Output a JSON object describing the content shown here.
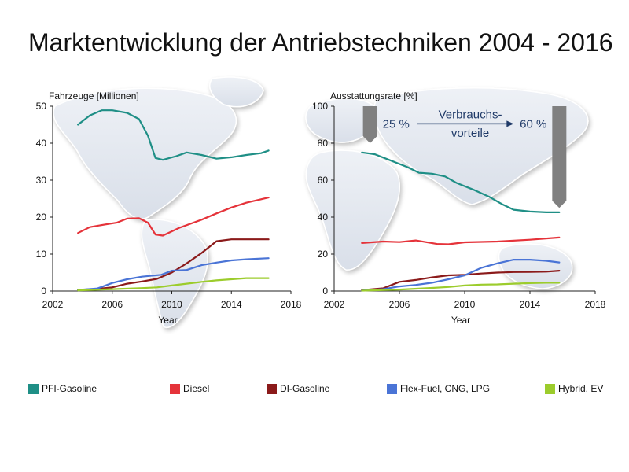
{
  "title": "Marktentwicklung der Antriebstechniken 2004 - 2016",
  "colors": {
    "pfi": "#1f8f86",
    "diesel": "#e5333a",
    "di": "#8b1a1a",
    "flex": "#4a74d6",
    "hybrid": "#9ccc2c",
    "axis": "#222222",
    "arrow_text": "#1f3a68",
    "bar": "#808080"
  },
  "legend": [
    {
      "key": "pfi",
      "label": "PFI-Gasoline",
      "color": "#1f8f86"
    },
    {
      "key": "diesel",
      "label": "Diesel",
      "color": "#e5333a"
    },
    {
      "key": "di",
      "label": "DI-Gasoline",
      "color": "#8b1a1a"
    },
    {
      "key": "flex",
      "label": "Flex-Fuel, CNG, LPG",
      "color": "#4a74d6"
    },
    {
      "key": "hybrid",
      "label": "Hybrid, EV",
      "color": "#9ccc2c"
    }
  ],
  "chart_data": [
    {
      "type": "line",
      "ylabel": "Fahrzeuge [Millionen]",
      "xlabel": "Year",
      "xlim": [
        2002,
        2018
      ],
      "ylim": [
        0,
        50
      ],
      "xticks": [
        2002,
        2006,
        2010,
        2014,
        2018
      ],
      "yticks": [
        0,
        10,
        20,
        30,
        40,
        50
      ],
      "grid": false,
      "series": [
        {
          "key": "pfi",
          "name": "PFI-Gasoline",
          "color": "#1f8f86",
          "points": [
            [
              2003.7,
              45
            ],
            [
              2004.5,
              47.5
            ],
            [
              2005.3,
              48.9
            ],
            [
              2006,
              48.9
            ],
            [
              2007,
              48.2
            ],
            [
              2007.8,
              46.5
            ],
            [
              2008.4,
              42
            ],
            [
              2008.9,
              36
            ],
            [
              2009.4,
              35.5
            ],
            [
              2010.3,
              36.5
            ],
            [
              2011,
              37.5
            ],
            [
              2012,
              36.8
            ],
            [
              2013,
              35.8
            ],
            [
              2014,
              36.2
            ],
            [
              2015,
              36.8
            ],
            [
              2016,
              37.3
            ],
            [
              2016.5,
              38
            ]
          ]
        },
        {
          "key": "diesel",
          "name": "Diesel",
          "color": "#e5333a",
          "points": [
            [
              2003.7,
              15.7
            ],
            [
              2004.5,
              17.3
            ],
            [
              2005.5,
              18
            ],
            [
              2006.3,
              18.5
            ],
            [
              2007,
              19.6
            ],
            [
              2007.8,
              19.7
            ],
            [
              2008.4,
              18.5
            ],
            [
              2008.9,
              15.3
            ],
            [
              2009.4,
              15
            ],
            [
              2010.5,
              17.1
            ],
            [
              2012,
              19.3
            ],
            [
              2013,
              21
            ],
            [
              2014,
              22.6
            ],
            [
              2015,
              23.9
            ],
            [
              2016.5,
              25.3
            ]
          ]
        },
        {
          "key": "di",
          "name": "DI-Gasoline",
          "color": "#8b1a1a",
          "points": [
            [
              2003.7,
              0.3
            ],
            [
              2005,
              0.6
            ],
            [
              2006,
              1
            ],
            [
              2007,
              2
            ],
            [
              2008,
              2.6
            ],
            [
              2009,
              3.3
            ],
            [
              2010,
              5
            ],
            [
              2011,
              7.5
            ],
            [
              2012,
              10.3
            ],
            [
              2013,
              13.5
            ],
            [
              2014,
              14
            ],
            [
              2015,
              14
            ],
            [
              2016.5,
              14
            ]
          ]
        },
        {
          "key": "flex",
          "name": "Flex-Fuel, CNG, LPG",
          "color": "#4a74d6",
          "points": [
            [
              2003.7,
              0.3
            ],
            [
              2005,
              0.7
            ],
            [
              2006,
              2.2
            ],
            [
              2007,
              3.2
            ],
            [
              2008,
              3.9
            ],
            [
              2009.3,
              4.4
            ],
            [
              2010,
              5.5
            ],
            [
              2011,
              5.7
            ],
            [
              2012,
              7
            ],
            [
              2013,
              7.7
            ],
            [
              2014,
              8.3
            ],
            [
              2015,
              8.6
            ],
            [
              2016.5,
              8.9
            ]
          ]
        },
        {
          "key": "hybrid",
          "name": "Hybrid, EV",
          "color": "#9ccc2c",
          "points": [
            [
              2003.7,
              0.2
            ],
            [
              2006,
              0.5
            ],
            [
              2008,
              0.8
            ],
            [
              2009,
              1
            ],
            [
              2010,
              1.5
            ],
            [
              2011,
              2
            ],
            [
              2012,
              2.5
            ],
            [
              2013,
              2.9
            ],
            [
              2014,
              3.2
            ],
            [
              2015,
              3.5
            ],
            [
              2016.5,
              3.5
            ]
          ]
        }
      ]
    },
    {
      "type": "line",
      "ylabel": "Ausstattungsrate [%]",
      "xlabel": "Year",
      "xlim": [
        2002,
        2018
      ],
      "ylim": [
        0,
        100
      ],
      "xticks": [
        2002,
        2006,
        2010,
        2014,
        2018
      ],
      "yticks": [
        0,
        20,
        40,
        60,
        80,
        100
      ],
      "grid": false,
      "series": [
        {
          "key": "pfi",
          "name": "PFI-Gasoline",
          "color": "#1f8f86",
          "points": [
            [
              2003.7,
              75
            ],
            [
              2004.5,
              74
            ],
            [
              2005.5,
              70.5
            ],
            [
              2006.5,
              67
            ],
            [
              2007.2,
              64
            ],
            [
              2008,
              63.5
            ],
            [
              2008.8,
              62
            ],
            [
              2009.5,
              58.5
            ],
            [
              2010.5,
              55
            ],
            [
              2011.5,
              51
            ],
            [
              2012.3,
              47
            ],
            [
              2013,
              44
            ],
            [
              2014,
              43
            ],
            [
              2015,
              42.6
            ],
            [
              2015.8,
              42.6
            ]
          ]
        },
        {
          "key": "diesel",
          "name": "Diesel",
          "color": "#e5333a",
          "points": [
            [
              2003.7,
              26
            ],
            [
              2005,
              26.8
            ],
            [
              2006,
              26.5
            ],
            [
              2007,
              27.4
            ],
            [
              2008.3,
              25.5
            ],
            [
              2009,
              25.3
            ],
            [
              2010,
              26.4
            ],
            [
              2012,
              26.8
            ],
            [
              2014,
              27.8
            ],
            [
              2015.8,
              29
            ]
          ]
        },
        {
          "key": "di",
          "name": "DI-Gasoline",
          "color": "#8b1a1a",
          "points": [
            [
              2003.7,
              0.5
            ],
            [
              2005,
              1.5
            ],
            [
              2006,
              5
            ],
            [
              2007,
              6
            ],
            [
              2008,
              7.4
            ],
            [
              2009,
              8.5
            ],
            [
              2010,
              8.8
            ],
            [
              2011,
              9.5
            ],
            [
              2012,
              10
            ],
            [
              2013,
              10.3
            ],
            [
              2014,
              10.4
            ],
            [
              2015,
              10.5
            ],
            [
              2015.8,
              11
            ]
          ]
        },
        {
          "key": "flex",
          "name": "Flex-Fuel, CNG, LPG",
          "color": "#4a74d6",
          "points": [
            [
              2003.7,
              0.3
            ],
            [
              2005,
              1
            ],
            [
              2006,
              2.5
            ],
            [
              2007,
              3.3
            ],
            [
              2008,
              4.5
            ],
            [
              2009,
              6.4
            ],
            [
              2010,
              8.5
            ],
            [
              2011,
              12.5
            ],
            [
              2012,
              15
            ],
            [
              2013,
              17
            ],
            [
              2014,
              17
            ],
            [
              2015,
              16.4
            ],
            [
              2015.8,
              15.5
            ]
          ]
        },
        {
          "key": "hybrid",
          "name": "Hybrid, EV",
          "color": "#9ccc2c",
          "points": [
            [
              2003.7,
              0.2
            ],
            [
              2006,
              0.8
            ],
            [
              2008,
              1.7
            ],
            [
              2009,
              2.2
            ],
            [
              2010,
              3
            ],
            [
              2011,
              3.5
            ],
            [
              2012,
              3.6
            ],
            [
              2013,
              4
            ],
            [
              2014,
              4.3
            ],
            [
              2015,
              4.5
            ],
            [
              2015.8,
              4.5
            ]
          ]
        }
      ],
      "annotation": {
        "left_value": "25 %",
        "right_value": "60 %",
        "label_line1": "Verbrauchs-",
        "label_line2": "vorteile",
        "left_bar": [
          100,
          80
        ],
        "right_bar": [
          100,
          45
        ]
      }
    }
  ]
}
